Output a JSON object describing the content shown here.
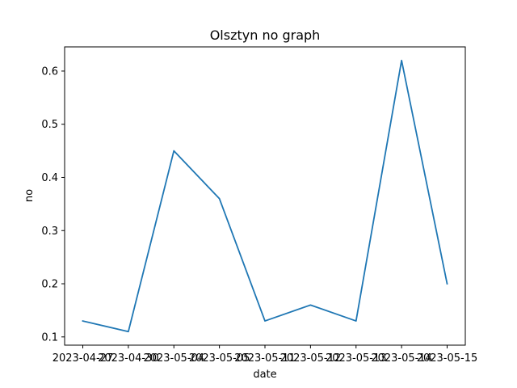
{
  "chart_data": {
    "type": "line",
    "title": "Olsztyn no graph",
    "xlabel": "date",
    "ylabel": "no",
    "x": [
      "2023-04-27",
      "2023-04-30",
      "2023-05-04",
      "2023-05-05",
      "2023-05-11",
      "2023-05-12",
      "2023-05-13",
      "2023-05-14",
      "2023-05-15"
    ],
    "series": [
      {
        "values": [
          0.13,
          0.11,
          0.45,
          0.36,
          0.13,
          0.16,
          0.13,
          0.62,
          0.2
        ]
      }
    ],
    "y_ticks": [
      0.1,
      0.2,
      0.3,
      0.4,
      0.5,
      0.6
    ],
    "ylim": [
      0.0845,
      0.6455
    ],
    "grid": false,
    "colors": {
      "line": "#1f77b4",
      "axes": "#000000"
    }
  }
}
